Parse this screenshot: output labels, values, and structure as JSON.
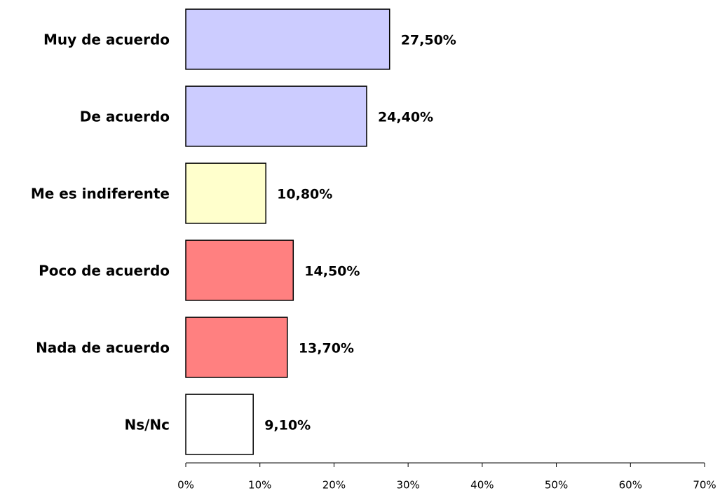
{
  "chart_data": {
    "type": "hbar",
    "categories": [
      "Muy de acuerdo",
      "De acuerdo",
      "Me es indiferente",
      "Poco de acuerdo",
      "Nada de acuerdo",
      "Ns/Nc"
    ],
    "values": [
      27.5,
      24.4,
      10.8,
      14.5,
      13.7,
      9.1
    ],
    "value_labels": [
      "27,50%",
      "24,40%",
      "10,80%",
      "14,50%",
      "13,70%",
      "9,10%"
    ],
    "colors": [
      "#ccccff",
      "#ccccff",
      "#ffffcc",
      "#ff8080",
      "#ff8080",
      "#ffffff"
    ],
    "xlim": [
      0,
      70
    ],
    "xticks": [
      {
        "value": 0,
        "label": "0%"
      },
      {
        "value": 10,
        "label": "10%"
      },
      {
        "value": 20,
        "label": "20%"
      },
      {
        "value": 30,
        "label": "30%"
      },
      {
        "value": 40,
        "label": "40%"
      },
      {
        "value": 50,
        "label": "50%"
      },
      {
        "value": 60,
        "label": "60%"
      },
      {
        "value": 70,
        "label": "70%"
      }
    ],
    "grid": false
  }
}
